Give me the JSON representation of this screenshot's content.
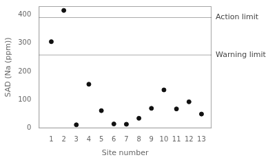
{
  "chart_data": {
    "type": "scatter",
    "x": [
      1,
      2,
      3,
      4,
      5,
      6,
      7,
      8,
      9,
      10,
      11,
      12,
      13
    ],
    "values": [
      305,
      415,
      12,
      155,
      62,
      15,
      14,
      35,
      70,
      135,
      68,
      93,
      50
    ],
    "color": "#111111",
    "xlabel": "Site number",
    "ylabel": "SAD (Na (ppm))",
    "xlim": [
      0.0,
      13.8
    ],
    "ylim": [
      0,
      430
    ],
    "xticks": [
      1,
      2,
      3,
      4,
      5,
      6,
      7,
      8,
      9,
      10,
      11,
      12,
      13
    ],
    "yticks": [
      0,
      100,
      200,
      300,
      400
    ],
    "grid": false,
    "annotations": [
      {
        "text": "Action limit",
        "y": 390,
        "color": "#aaaaaa"
      },
      {
        "text": "Warning limit",
        "y": 258,
        "color": "#aaaaaa"
      }
    ]
  }
}
